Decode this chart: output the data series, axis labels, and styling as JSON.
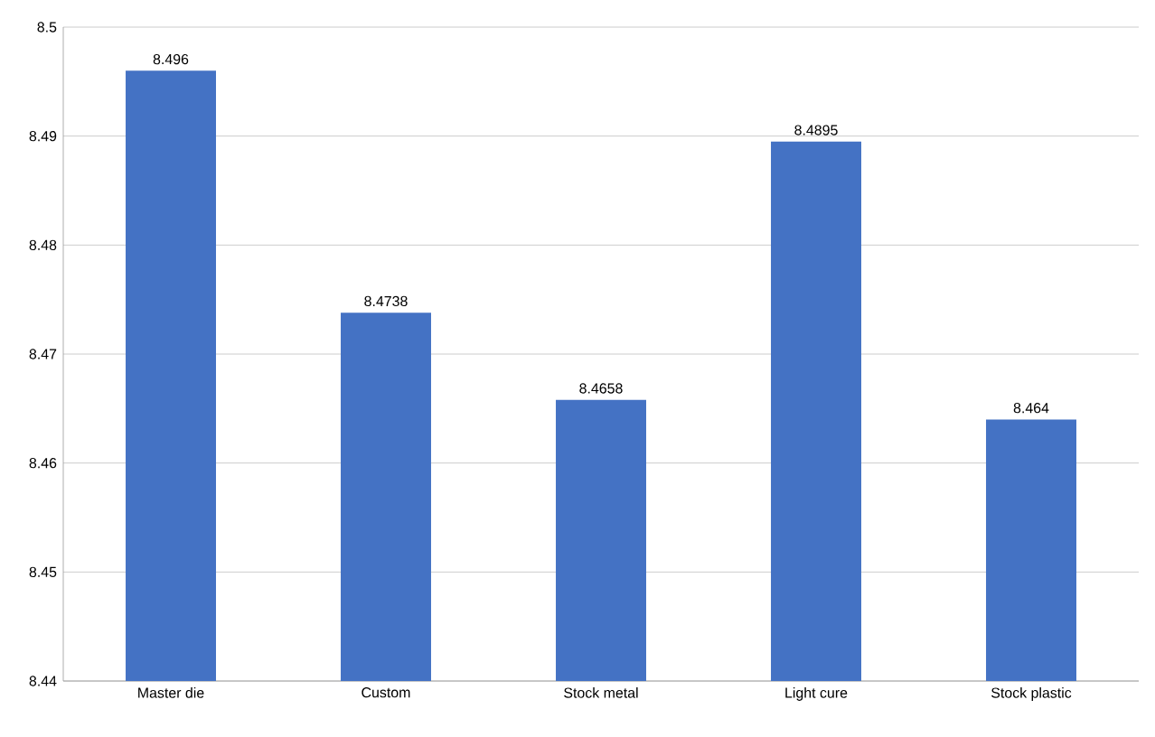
{
  "chart_data": {
    "type": "bar",
    "categories": [
      "Master die",
      "Custom",
      "Stock metal",
      "Light cure",
      "Stock plastic"
    ],
    "values": [
      8.496,
      8.4738,
      8.4658,
      8.4895,
      8.464
    ],
    "color": "#4472c4",
    "ylim": [
      8.44,
      8.5
    ],
    "yticks": [
      8.44,
      8.45,
      8.46,
      8.47,
      8.48,
      8.49,
      8.5
    ],
    "grid": "y",
    "data_labels": true
  }
}
